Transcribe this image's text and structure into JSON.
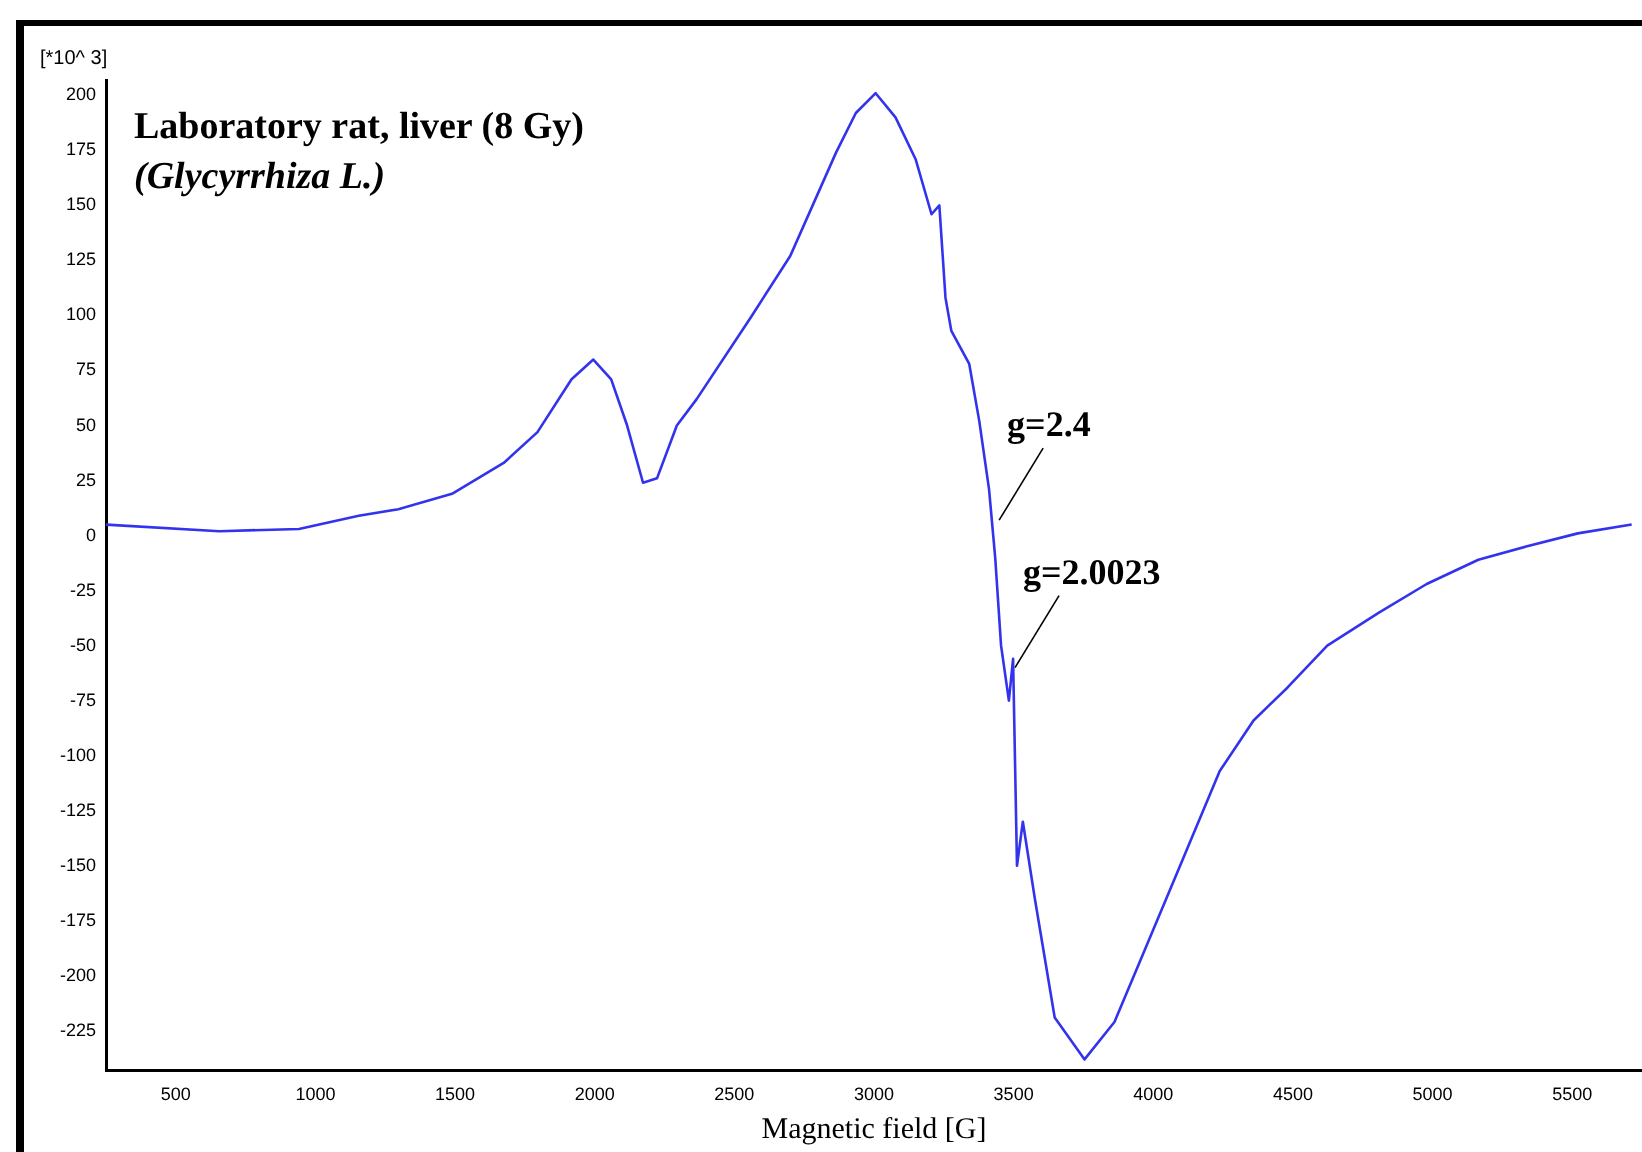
{
  "chart_data": {
    "type": "line",
    "title": "Laboratory rat, liver (8 Gy)",
    "subtitle": "(Glycyrrhiza L.)",
    "xlabel": "Magnetic field [G]",
    "ylabel": "[*10^ 3]",
    "x": [
      250,
      656,
      941,
      1155,
      1297,
      1489,
      1674,
      1795,
      1917,
      1995,
      2059,
      2116,
      2173,
      2223,
      2294,
      2365,
      2558,
      2700,
      2864,
      2935,
      3006,
      3077,
      3149,
      3206,
      3234,
      3256,
      3277,
      3341,
      3377,
      3412,
      3434,
      3455,
      3483,
      3498,
      3512,
      3533,
      3576,
      3647,
      3754,
      3861,
      3954,
      4096,
      4238,
      4359,
      4481,
      4623,
      4808,
      4979,
      5164,
      5335,
      5520,
      5713
    ],
    "series": [
      {
        "color": "#3333ee",
        "values": [
          5,
          2,
          3,
          9,
          12,
          19,
          33,
          47,
          71,
          80,
          71,
          50,
          24,
          26,
          50,
          62,
          99,
          127,
          174,
          192,
          201,
          190,
          171,
          146,
          150,
          108,
          93,
          78,
          52,
          21,
          -10,
          -50,
          -75,
          -56,
          -150,
          -130,
          -165,
          -219,
          -238,
          -221,
          -193,
          -150,
          -107,
          -84,
          -69,
          -50,
          -35,
          -22,
          -11,
          -5,
          1,
          5
        ]
      }
    ],
    "xlim": [
      250,
      5750
    ],
    "xticks": [
      500,
      1000,
      1500,
      2000,
      2500,
      3000,
      3500,
      4000,
      4500,
      5000,
      5500
    ],
    "ylim": [
      -243,
      207
    ],
    "yticks": [
      -225,
      -200,
      -175,
      -150,
      -125,
      -100,
      -75,
      -50,
      -25,
      0,
      25,
      50,
      75,
      100,
      125,
      150,
      175,
      200
    ],
    "grid": false,
    "legend": false,
    "marker": "none",
    "line_style": "solid",
    "annotations": [
      {
        "text": "g=2.4",
        "x": 3448,
        "y": 7
      },
      {
        "text": "g=2.0023",
        "x": 3505,
        "y": -60
      }
    ]
  }
}
